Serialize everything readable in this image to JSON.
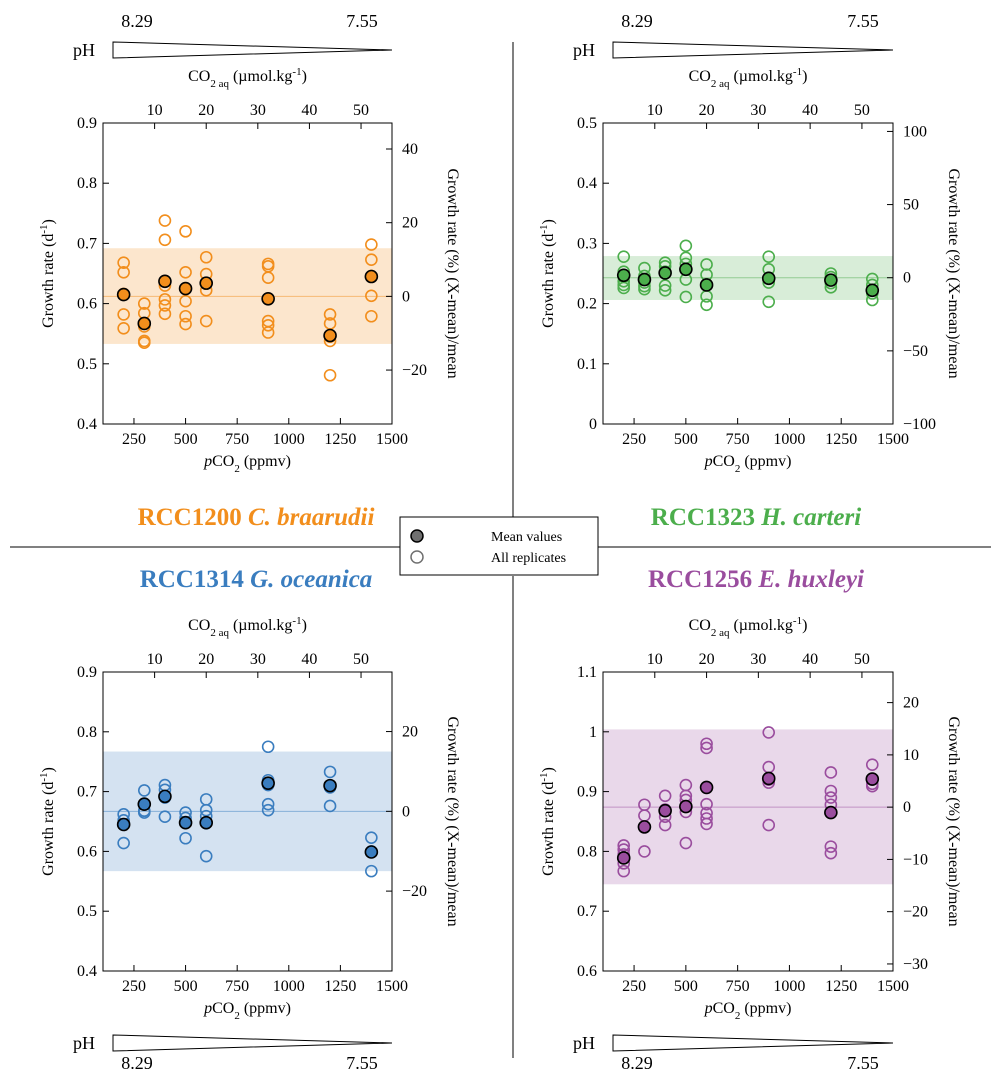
{
  "chart_data": [
    {
      "type": "scatter",
      "species_code": "RCC1200",
      "species_name": "C. braarudii",
      "color": "#f28e1c",
      "xlabel": "pCO2 (ppmv)",
      "xlabel_prefix": "p",
      "xlabel_core": "CO",
      "xlabel_sub": "2",
      "xlabel_suffix": " (ppmv)",
      "ylabel": "Growth rate (d-1)",
      "ylabel_left_main": "Growth rate (d",
      "ylabel_left_sup": "-1",
      "ylabel_left_end": ")",
      "ylabel_right": "Growth rate (%) (X-mean)/mean",
      "top_axis_label": "CO2 aq (µmol.kg-1)",
      "xlim": [
        100,
        1500
      ],
      "ylim": [
        0.4,
        0.9
      ],
      "x_ticks": [
        250,
        500,
        750,
        1000,
        1250,
        1500
      ],
      "x_tick_labels": [
        "250",
        "500",
        "750",
        "1000",
        "1250",
        "1500"
      ],
      "y_ticks": [
        0.4,
        0.5,
        0.6,
        0.7,
        0.8,
        0.9
      ],
      "y_tick_labels": [
        "0.4",
        "0.5",
        "0.6",
        "0.7",
        "0.8",
        "0.9"
      ],
      "top_ticks": [
        10,
        20,
        30,
        40,
        50
      ],
      "top_tick_labels": [
        "10",
        "20",
        "30",
        "40",
        "50"
      ],
      "right_ticks": [
        -20,
        0,
        20,
        40
      ],
      "right_tick_labels": [
        "−20",
        "0",
        "20",
        "40"
      ],
      "mean_line": 0.612,
      "band": [
        0.533,
        0.692
      ],
      "ph_position": "top",
      "ph_label": "pH",
      "ph_left": "8.29",
      "ph_right": "7.55",
      "replicates": [
        {
          "x": 200,
          "y": [
            0.668,
            0.652,
            0.616,
            0.582,
            0.559
          ]
        },
        {
          "x": 300,
          "y": [
            0.6,
            0.584,
            0.562,
            0.538,
            0.535
          ]
        },
        {
          "x": 400,
          "y": [
            0.738,
            0.706,
            0.63,
            0.607,
            0.597,
            0.583
          ]
        },
        {
          "x": 500,
          "y": [
            0.72,
            0.652,
            0.625,
            0.604,
            0.579,
            0.566
          ]
        },
        {
          "x": 600,
          "y": [
            0.677,
            0.649,
            0.633,
            0.622,
            0.571
          ]
        },
        {
          "x": 900,
          "y": [
            0.666,
            0.662,
            0.643,
            0.571,
            0.564,
            0.552
          ]
        },
        {
          "x": 1200,
          "y": [
            0.582,
            0.567,
            0.545,
            0.538,
            0.481
          ]
        },
        {
          "x": 1400,
          "y": [
            0.698,
            0.673,
            0.646,
            0.613,
            0.579
          ]
        }
      ],
      "means": [
        {
          "x": 200,
          "y": 0.615
        },
        {
          "x": 300,
          "y": 0.567
        },
        {
          "x": 400,
          "y": 0.637
        },
        {
          "x": 500,
          "y": 0.625
        },
        {
          "x": 600,
          "y": 0.634
        },
        {
          "x": 900,
          "y": 0.608
        },
        {
          "x": 1200,
          "y": 0.547
        },
        {
          "x": 1400,
          "y": 0.645
        }
      ]
    },
    {
      "type": "scatter",
      "species_code": "RCC1323",
      "species_name": "H. carteri",
      "color": "#4cae4c",
      "xlabel": "pCO2 (ppmv)",
      "xlabel_prefix": "p",
      "xlabel_core": "CO",
      "xlabel_sub": "2",
      "xlabel_suffix": " (ppmv)",
      "ylabel": "Growth rate (d-1)",
      "ylabel_left_main": "Growth rate (d",
      "ylabel_left_sup": "-1",
      "ylabel_left_end": ")",
      "ylabel_right": "Growth rate (%) (X-mean)/mean",
      "top_axis_label": "CO2 aq (µmol.kg-1)",
      "xlim": [
        100,
        1500
      ],
      "ylim": [
        0,
        0.5
      ],
      "x_ticks": [
        250,
        500,
        750,
        1000,
        1250,
        1500
      ],
      "x_tick_labels": [
        "250",
        "500",
        "750",
        "1000",
        "1250",
        "1500"
      ],
      "y_ticks": [
        0,
        0.1,
        0.2,
        0.3,
        0.4,
        0.5
      ],
      "y_tick_labels": [
        "0",
        "0.1",
        "0.2",
        "0.3",
        "0.4",
        "0.5"
      ],
      "top_ticks": [
        10,
        20,
        30,
        40,
        50
      ],
      "top_tick_labels": [
        "10",
        "20",
        "30",
        "40",
        "50"
      ],
      "right_ticks": [
        -100,
        -50,
        0,
        50,
        100
      ],
      "right_tick_labels": [
        "−100",
        "−50",
        "0",
        "50",
        "100"
      ],
      "mean_line": 0.243,
      "band": [
        0.206,
        0.279
      ],
      "ph_position": "top",
      "ph_label": "pH",
      "ph_left": "8.29",
      "ph_right": "7.55",
      "replicates": [
        {
          "x": 200,
          "y": [
            0.278,
            0.253,
            0.245,
            0.237,
            0.231,
            0.226
          ]
        },
        {
          "x": 300,
          "y": [
            0.259,
            0.246,
            0.235,
            0.229,
            0.224
          ]
        },
        {
          "x": 400,
          "y": [
            0.268,
            0.262,
            0.253,
            0.23,
            0.222
          ]
        },
        {
          "x": 500,
          "y": [
            0.296,
            0.276,
            0.266,
            0.257,
            0.24,
            0.211
          ]
        },
        {
          "x": 600,
          "y": [
            0.265,
            0.248,
            0.232,
            0.212,
            0.198
          ]
        },
        {
          "x": 900,
          "y": [
            0.278,
            0.257,
            0.243,
            0.235,
            0.203
          ]
        },
        {
          "x": 1200,
          "y": [
            0.25,
            0.244,
            0.234,
            0.227
          ]
        },
        {
          "x": 1400,
          "y": [
            0.241,
            0.231,
            0.217,
            0.206
          ]
        }
      ],
      "means": [
        {
          "x": 200,
          "y": 0.247
        },
        {
          "x": 300,
          "y": 0.24
        },
        {
          "x": 400,
          "y": 0.251
        },
        {
          "x": 500,
          "y": 0.257
        },
        {
          "x": 600,
          "y": 0.231
        },
        {
          "x": 900,
          "y": 0.242
        },
        {
          "x": 1200,
          "y": 0.239
        },
        {
          "x": 1400,
          "y": 0.222
        }
      ]
    },
    {
      "type": "scatter",
      "species_code": "RCC1314",
      "species_name": "G. oceanica",
      "color": "#3a7dbf",
      "xlabel": "pCO2 (ppmv)",
      "xlabel_prefix": "p",
      "xlabel_core": "CO",
      "xlabel_sub": "2",
      "xlabel_suffix": " (ppmv)",
      "ylabel": "Growth rate (d-1)",
      "ylabel_left_main": "Growth rate (d",
      "ylabel_left_sup": "-1",
      "ylabel_left_end": ")",
      "ylabel_right": "Growth rate (%) (X-mean)/mean",
      "top_axis_label": "CO2 aq (µmol.kg-1)",
      "xlim": [
        100,
        1500
      ],
      "ylim": [
        0.4,
        0.9
      ],
      "x_ticks": [
        250,
        500,
        750,
        1000,
        1250,
        1500
      ],
      "x_tick_labels": [
        "250",
        "500",
        "750",
        "1000",
        "1250",
        "1500"
      ],
      "y_ticks": [
        0.4,
        0.5,
        0.6,
        0.7,
        0.8,
        0.9
      ],
      "y_tick_labels": [
        "0.4",
        "0.5",
        "0.6",
        "0.7",
        "0.8",
        "0.9"
      ],
      "top_ticks": [
        10,
        20,
        30,
        40,
        50
      ],
      "top_tick_labels": [
        "10",
        "20",
        "30",
        "40",
        "50"
      ],
      "right_ticks": [
        -20,
        0,
        20
      ],
      "right_tick_labels": [
        "−20",
        "0",
        "20"
      ],
      "mean_line": 0.667,
      "band": [
        0.567,
        0.767
      ],
      "ph_position": "bottom",
      "ph_label": "pH",
      "ph_left": "8.29",
      "ph_right": "7.55",
      "replicates": [
        {
          "x": 200,
          "y": [
            0.662,
            0.652,
            0.614
          ]
        },
        {
          "x": 300,
          "y": [
            0.702,
            0.68,
            0.668,
            0.665
          ]
        },
        {
          "x": 400,
          "y": [
            0.711,
            0.703,
            0.69,
            0.658
          ]
        },
        {
          "x": 500,
          "y": [
            0.665,
            0.656,
            0.649,
            0.622
          ]
        },
        {
          "x": 600,
          "y": [
            0.687,
            0.669,
            0.659,
            0.647,
            0.592
          ]
        },
        {
          "x": 900,
          "y": [
            0.775,
            0.719,
            0.711,
            0.679,
            0.669
          ]
        },
        {
          "x": 1200,
          "y": [
            0.733,
            0.707,
            0.676
          ]
        },
        {
          "x": 1400,
          "y": [
            0.623,
            0.6,
            0.567
          ]
        }
      ],
      "means": [
        {
          "x": 200,
          "y": 0.645
        },
        {
          "x": 300,
          "y": 0.679
        },
        {
          "x": 400,
          "y": 0.692
        },
        {
          "x": 500,
          "y": 0.648
        },
        {
          "x": 600,
          "y": 0.648
        },
        {
          "x": 900,
          "y": 0.714
        },
        {
          "x": 1200,
          "y": 0.71
        },
        {
          "x": 1400,
          "y": 0.599
        }
      ]
    },
    {
      "type": "scatter",
      "species_code": "RCC1256",
      "species_name": "E. huxleyi",
      "color": "#9a4d9e",
      "xlabel": "pCO2 (ppmv)",
      "xlabel_prefix": "p",
      "xlabel_core": "CO",
      "xlabel_sub": "2",
      "xlabel_suffix": " (ppmv)",
      "ylabel": "Growth rate (d-1)",
      "ylabel_left_main": "Growth rate (d",
      "ylabel_left_sup": "-1",
      "ylabel_left_end": ")",
      "ylabel_right": "Growth rate (%) (X-mean)/mean",
      "top_axis_label": "CO2 aq (µmol.kg-1)",
      "xlim": [
        100,
        1500
      ],
      "ylim": [
        0.6,
        1.1
      ],
      "x_ticks": [
        250,
        500,
        750,
        1000,
        1250,
        1500
      ],
      "x_tick_labels": [
        "250",
        "500",
        "750",
        "1000",
        "1250",
        "1500"
      ],
      "y_ticks": [
        0.6,
        0.7,
        0.8,
        0.9,
        1.0,
        1.1
      ],
      "y_tick_labels": [
        "0.6",
        "0.7",
        "0.8",
        "0.9",
        "1",
        "1.1"
      ],
      "top_ticks": [
        10,
        20,
        30,
        40,
        50
      ],
      "top_tick_labels": [
        "10",
        "20",
        "30",
        "40",
        "50"
      ],
      "right_ticks": [
        -30,
        -20,
        -10,
        0,
        10,
        20
      ],
      "right_tick_labels": [
        "−30",
        "−20",
        "−10",
        "0",
        "10",
        "20"
      ],
      "mean_line": 0.874,
      "band": [
        0.745,
        1.004
      ],
      "ph_position": "bottom",
      "ph_label": "pH",
      "ph_left": "8.29",
      "ph_right": "7.55",
      "replicates": [
        {
          "x": 200,
          "y": [
            0.81,
            0.803,
            0.795,
            0.78,
            0.767
          ]
        },
        {
          "x": 300,
          "y": [
            0.878,
            0.86,
            0.84,
            0.8
          ]
        },
        {
          "x": 400,
          "y": [
            0.893,
            0.87,
            0.858,
            0.844
          ]
        },
        {
          "x": 500,
          "y": [
            0.911,
            0.893,
            0.886,
            0.866,
            0.814
          ]
        },
        {
          "x": 600,
          "y": [
            0.98,
            0.973,
            0.879,
            0.864,
            0.855,
            0.846
          ]
        },
        {
          "x": 900,
          "y": [
            0.999,
            0.941,
            0.92,
            0.915,
            0.844
          ]
        },
        {
          "x": 1200,
          "y": [
            0.932,
            0.901,
            0.89,
            0.878,
            0.808,
            0.797
          ]
        },
        {
          "x": 1400,
          "y": [
            0.945,
            0.92,
            0.913,
            0.909
          ]
        }
      ],
      "means": [
        {
          "x": 200,
          "y": 0.789
        },
        {
          "x": 300,
          "y": 0.841
        },
        {
          "x": 400,
          "y": 0.868
        },
        {
          "x": 500,
          "y": 0.875
        },
        {
          "x": 600,
          "y": 0.907
        },
        {
          "x": 900,
          "y": 0.922
        },
        {
          "x": 1200,
          "y": 0.865
        },
        {
          "x": 1400,
          "y": 0.921
        }
      ]
    }
  ],
  "legend": {
    "mean_label": "Mean values",
    "replicate_label": "All replicates",
    "mean_fill": "#707070",
    "marker_edge": "#707070"
  },
  "co2_label": {
    "main": "CO",
    "sub": "2 aq",
    "unit": " (µmol.kg",
    "sup": "-1",
    "end": ")"
  }
}
